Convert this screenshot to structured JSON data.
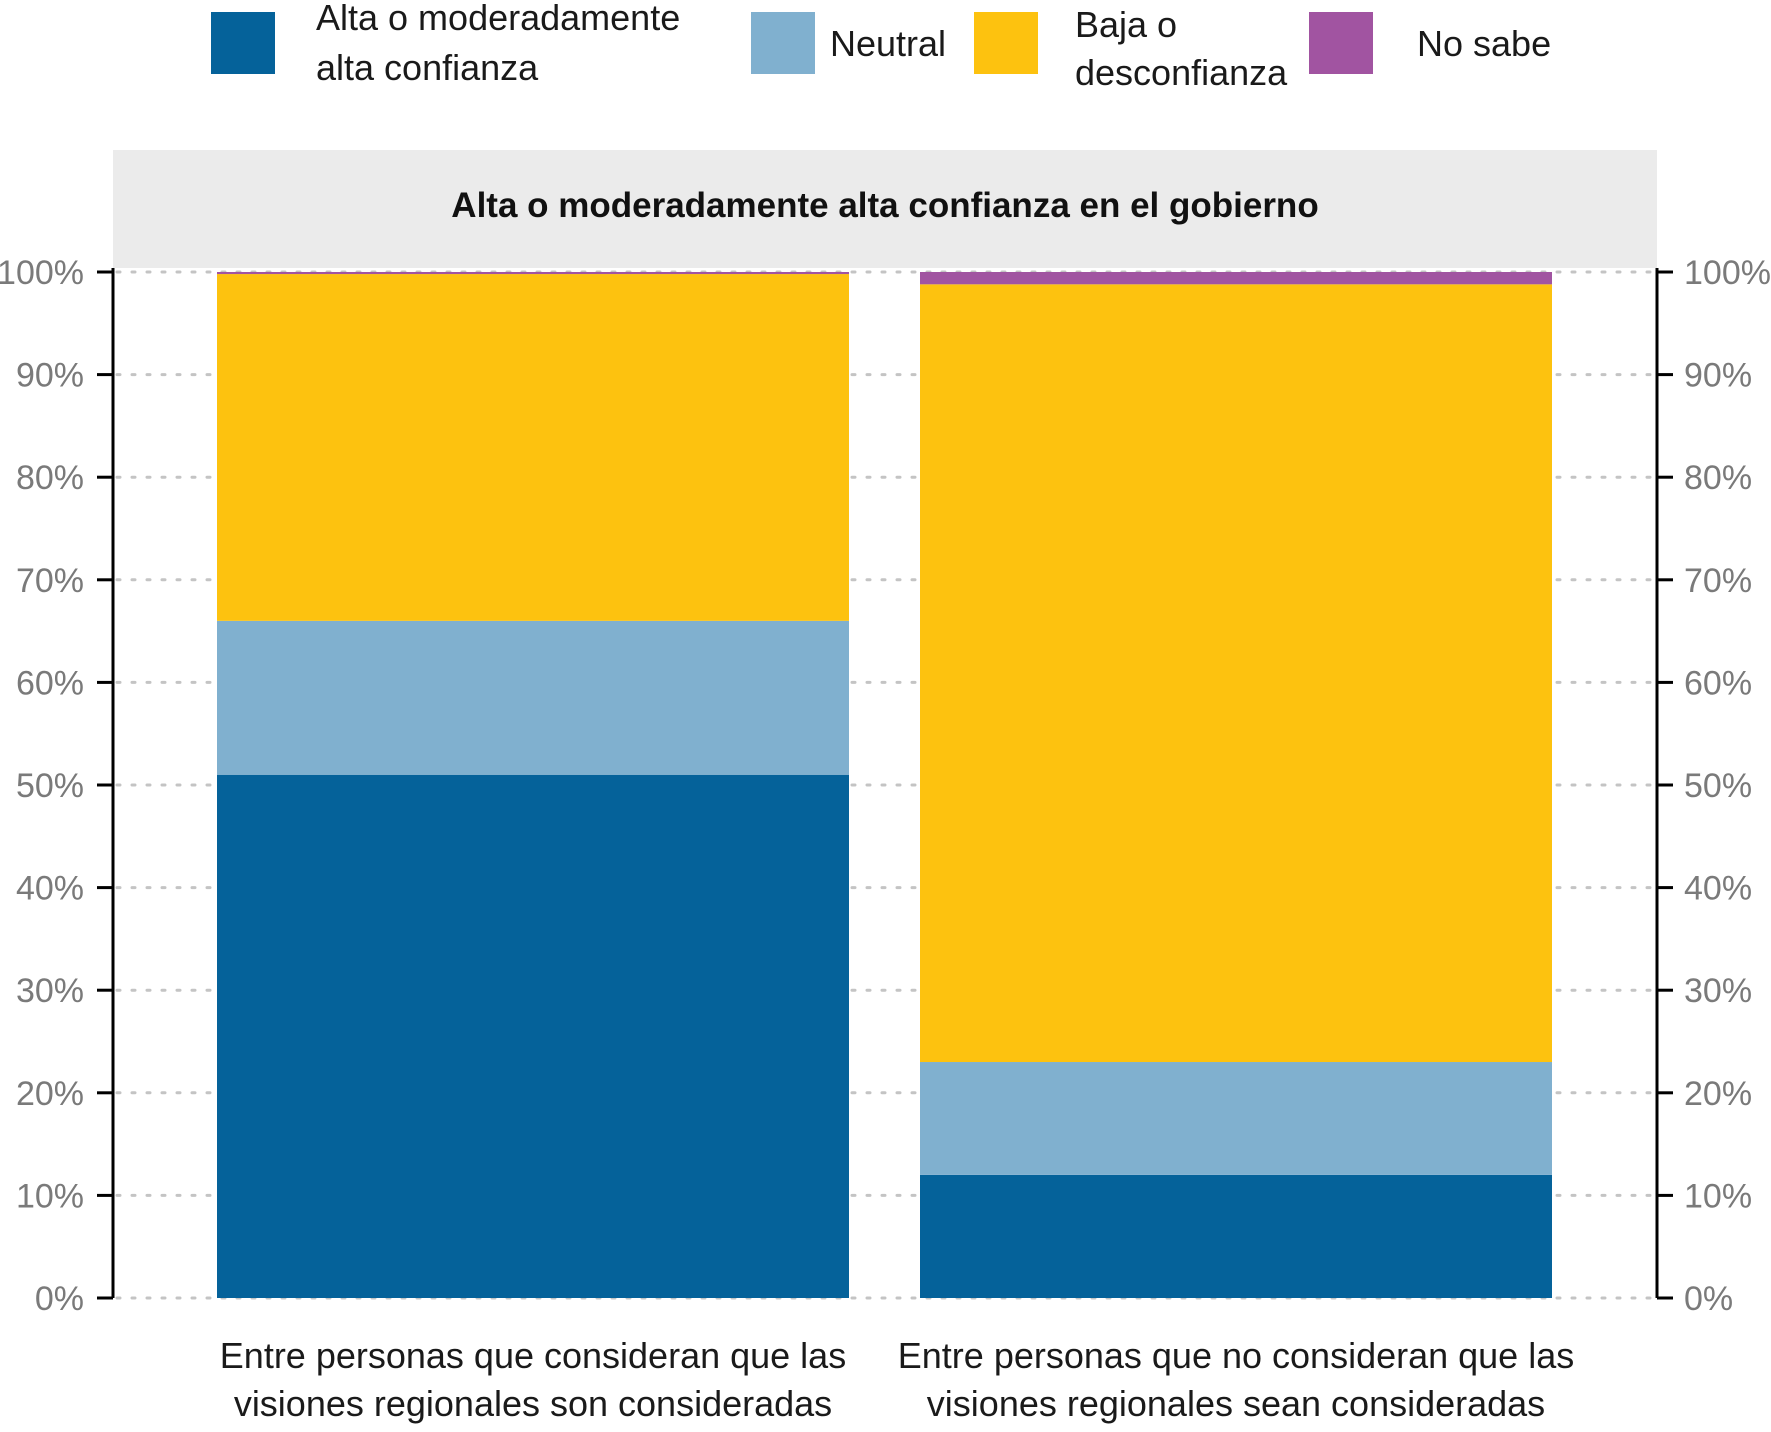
{
  "chart_data": {
    "type": "bar",
    "stacked": true,
    "panel_title": "Alta o moderadamente alta confianza en el gobierno",
    "categories": [
      [
        "Entre personas que consideran que las",
        "visiones regionales son consideradas"
      ],
      [
        "Entre personas que no consideran que las",
        "visiones regionales sean consideradas"
      ]
    ],
    "series": [
      {
        "name": [
          "Alta o moderadamente",
          "alta confianza"
        ],
        "color": "#05629a",
        "values": [
          51,
          12
        ]
      },
      {
        "name": [
          "Neutral"
        ],
        "color": "#80b0cf",
        "values": [
          15,
          11
        ]
      },
      {
        "name": [
          "Baja o",
          "desconfianza"
        ],
        "color": "#fdc20f",
        "values": [
          33.8,
          75.8
        ]
      },
      {
        "name": [
          "No sabe"
        ],
        "color": "#a154a1",
        "values": [
          0.2,
          1.2
        ]
      }
    ],
    "ylim": [
      0,
      100
    ],
    "y_ticks": [
      "0%",
      "10%",
      "20%",
      "30%",
      "40%",
      "50%",
      "60%",
      "70%",
      "80%",
      "90%",
      "100%"
    ],
    "grid": "dotted horizontal",
    "legend": "top",
    "xlabel": "",
    "ylabel": ""
  }
}
